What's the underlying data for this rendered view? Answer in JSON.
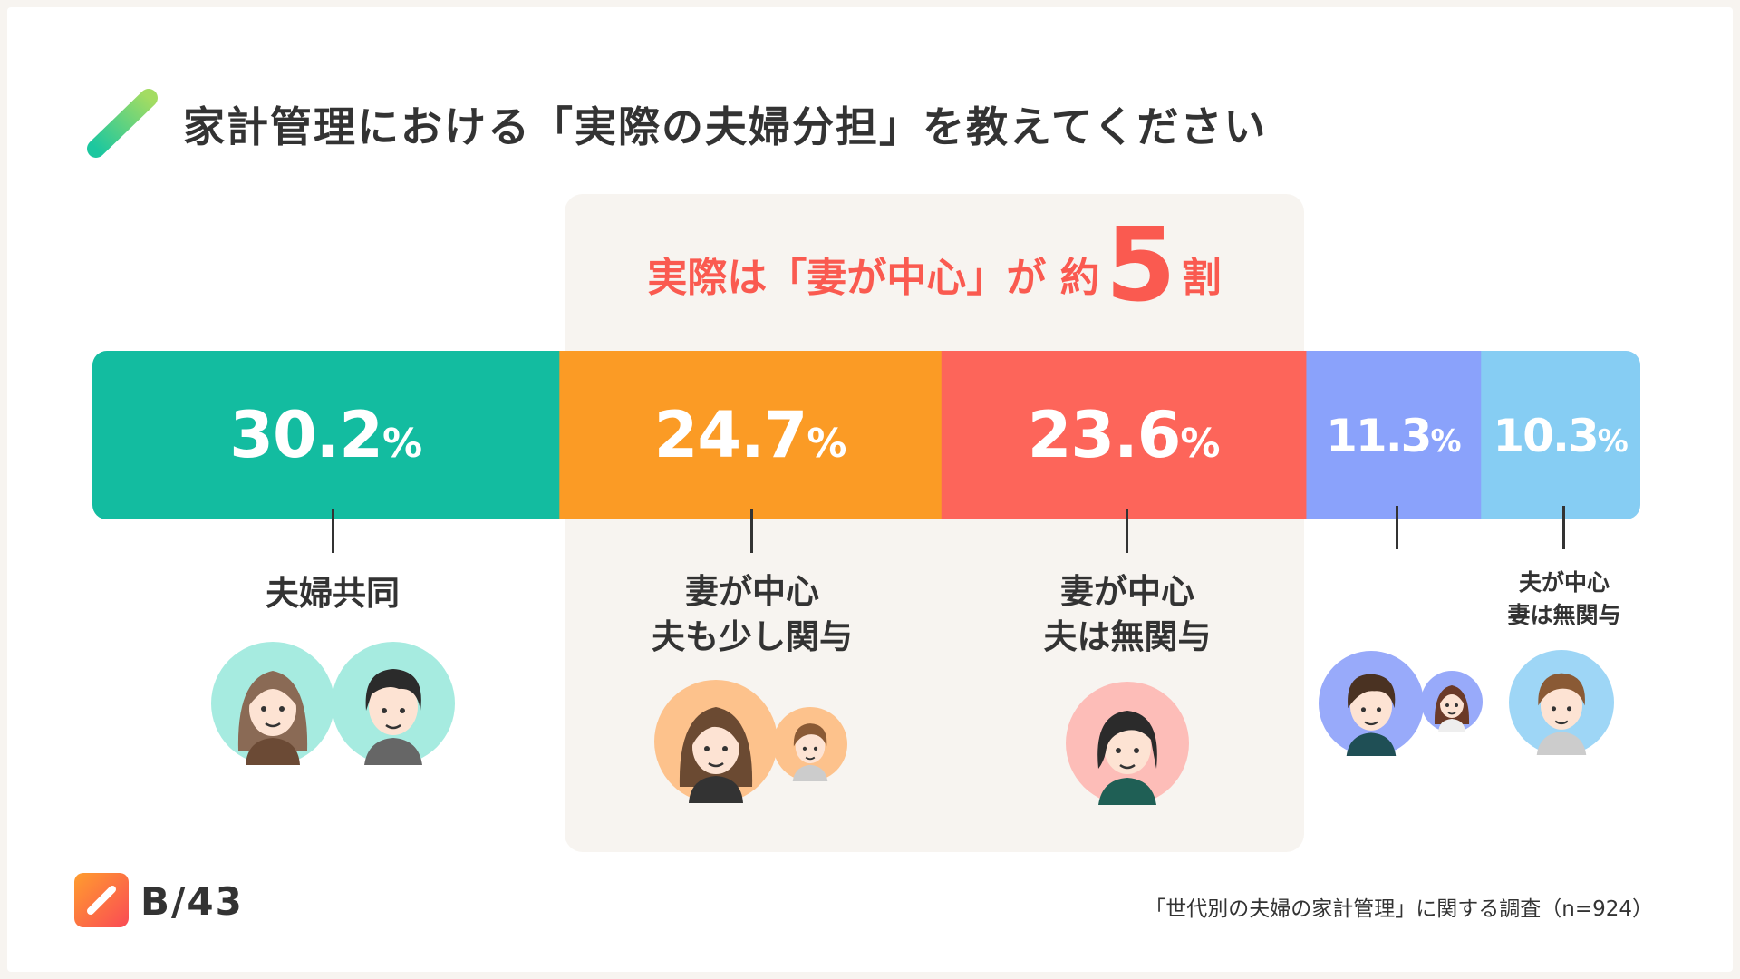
{
  "title": "家計管理における「実際の夫婦分担」を教えてください",
  "headline": {
    "prefix": "実際は「妻が中心」が 約",
    "number": "5",
    "suffix": "割"
  },
  "chart_data": {
    "type": "bar",
    "orientation": "horizontal-stacked-100",
    "unit": "%",
    "categories": [
      "夫婦共同",
      "妻が中心 夫も少し関与",
      "妻が中心 夫は無関与",
      "",
      "夫が中心 妻は無関与"
    ],
    "series": [
      {
        "values": [
          30.2,
          24.7,
          23.6,
          11.3,
          10.3
        ]
      }
    ],
    "data_labels": [
      "30.2",
      "24.7",
      "23.6",
      "11.3",
      "10.3"
    ],
    "colors": [
      "#13bca0",
      "#fb9b25",
      "#fd655a",
      "#8aa2fb",
      "#86cdf3"
    ]
  },
  "labels": {
    "joint": [
      "夫婦共同"
    ],
    "wife_husband_some": [
      "妻が中心",
      "夫も少し関与"
    ],
    "wife_husband_none": [
      "妻が中心",
      "夫は無関与"
    ],
    "husband_wife_none": [
      "夫が中心",
      "妻は無関与"
    ]
  },
  "icons": [
    "logo-slash-icon",
    "woman-avatar-icon",
    "man-avatar-icon"
  ],
  "footer": {
    "brand": "B/43",
    "source": "「世代別の夫婦の家計管理」に関する調査（n=924）"
  }
}
